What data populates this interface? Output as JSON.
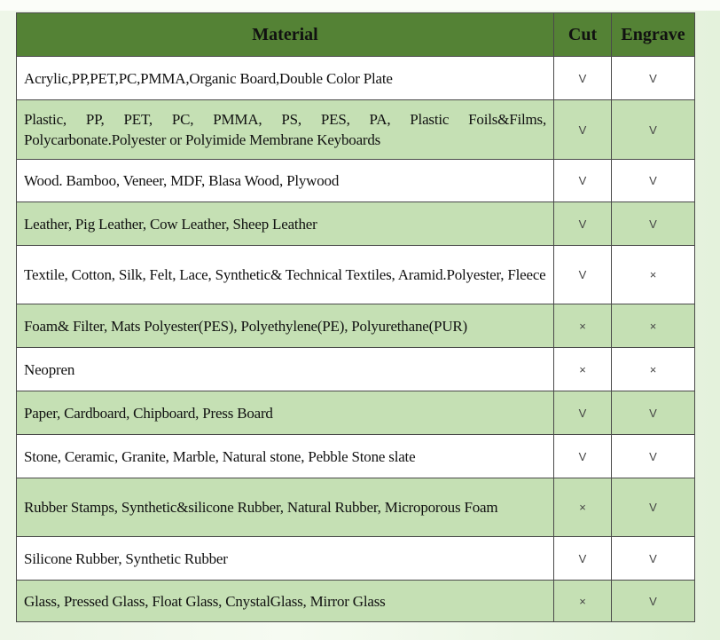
{
  "colors": {
    "header": "#548235",
    "alt_row": "#c5e0b4",
    "row": "#ffffff"
  },
  "headers": {
    "material": "Material",
    "cut": "Cut",
    "engrave": "Engrave"
  },
  "rows": [
    {
      "material": "Acrylic,PP,PET,PC,PMMA,Organic Board,Double Color Plate",
      "cut": "V",
      "engrave": "V"
    },
    {
      "material": "Plastic, PP, PET, PC, PMMA, PS, PES, PA, Plastic Foils&Films, Polycarbonate.Polyester or Polyimide Membrane Keyboards",
      "cut": "V",
      "engrave": "V"
    },
    {
      "material": "Wood. Bamboo, Veneer, MDF, Blasa Wood, Plywood",
      "cut": "V",
      "engrave": "V"
    },
    {
      "material": "Leather, Pig Leather, Cow Leather, Sheep Leather",
      "cut": "V",
      "engrave": "V"
    },
    {
      "material": "Textile, Cotton, Silk, Felt, Lace, Synthetic& Technical Textiles, Aramid.Polyester, Fleece",
      "cut": "V",
      "engrave": "×"
    },
    {
      "material": "Foam& Filter, Mats Polyester(PES), Polyethylene(PE), Polyurethane(PUR)",
      "cut": "×",
      "engrave": "×"
    },
    {
      "material": "Neopren",
      "cut": "×",
      "engrave": "×"
    },
    {
      "material": "Paper, Cardboard, Chipboard, Press Board",
      "cut": "V",
      "engrave": "V"
    },
    {
      "material": "Stone, Ceramic, Granite, Marble, Natural stone, Pebble Stone slate",
      "cut": "V",
      "engrave": "V"
    },
    {
      "material": "Rubber Stamps, Synthetic&silicone Rubber, Natural Rubber, Microporous Foam",
      "cut": "×",
      "engrave": "V"
    },
    {
      "material": "Silicone Rubber, Synthetic Rubber",
      "cut": "V",
      "engrave": "V"
    },
    {
      "material": "Glass, Pressed Glass, Float Glass, CnystalGlass, Mirror Glass",
      "cut": "×",
      "engrave": "V"
    }
  ]
}
